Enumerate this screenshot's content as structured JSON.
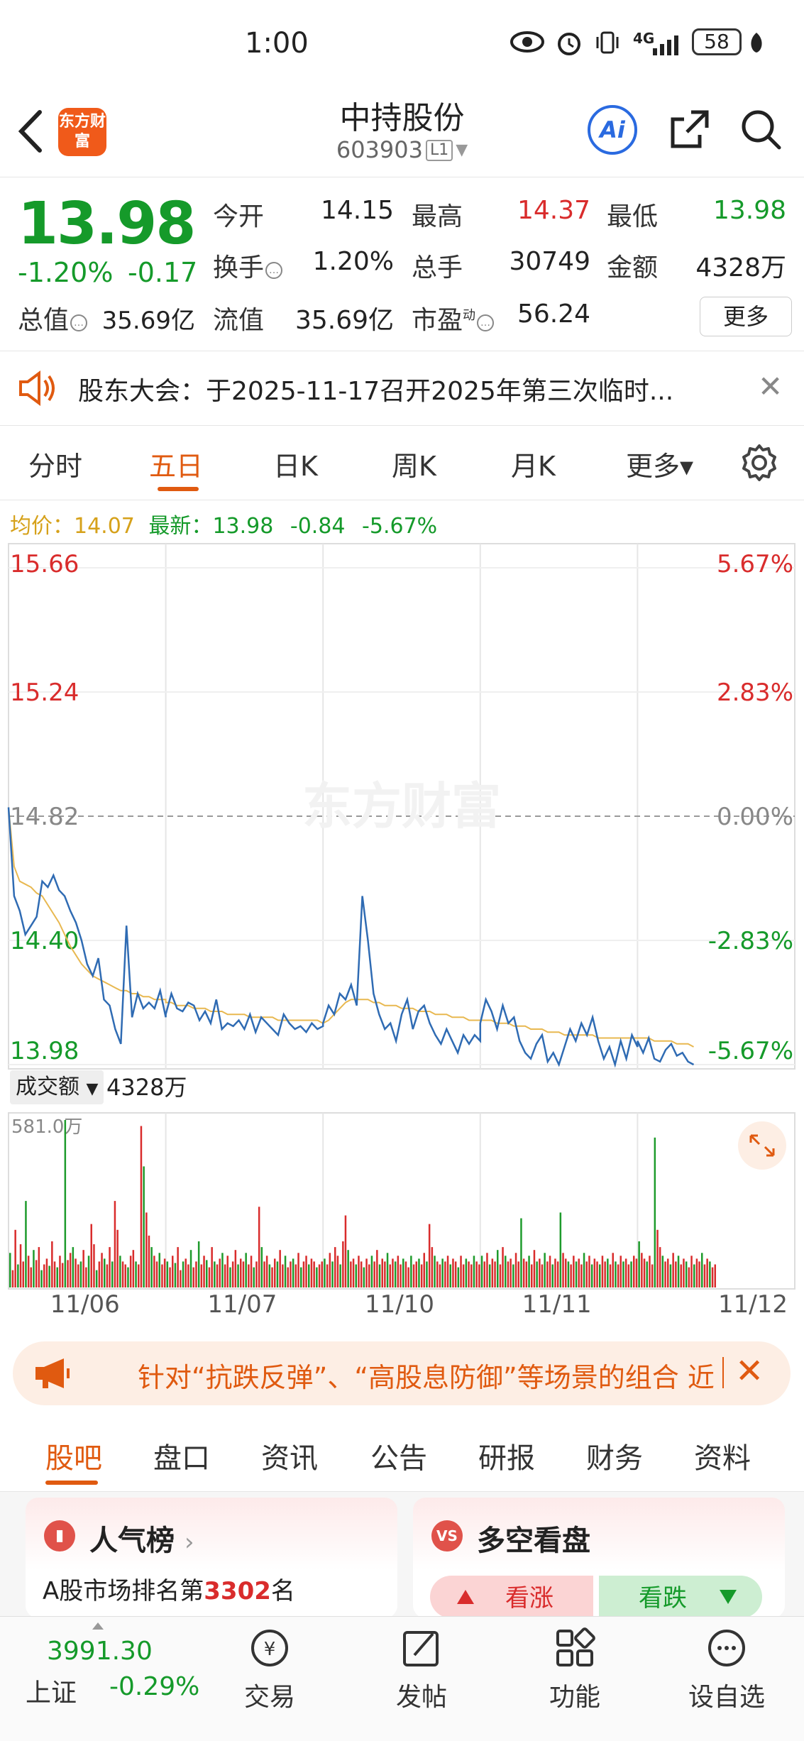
{
  "status": {
    "time": "1:00",
    "network": "4G",
    "battery": "58"
  },
  "header": {
    "logo_text": "东方财富",
    "stock_name": "中持股份",
    "stock_code": "603903",
    "level": "L1",
    "ai_label": "Ai"
  },
  "quote": {
    "price": "13.98",
    "change_pct": "-1.20%",
    "change": "-0.17",
    "open_label": "今开",
    "open": "14.15",
    "high_label": "最高",
    "high": "14.37",
    "low_label": "最低",
    "low": "13.98",
    "turnover_label": "换手",
    "turnover": "1.20%",
    "volume_label": "总手",
    "volume": "30749",
    "amount_label": "金额",
    "amount": "4328万",
    "mktcap_label": "总值",
    "mktcap": "35.69亿",
    "float_label": "流值",
    "float": "35.69亿",
    "pe_label": "市盈",
    "pe_sup": "动",
    "pe": "56.24",
    "more_label": "更多"
  },
  "notice": {
    "text": "股东大会：于2025-11-17召开2025年第三次临时..."
  },
  "chart_tabs": {
    "items": [
      "分时",
      "五日",
      "日K",
      "周K",
      "月K",
      "更多▾"
    ],
    "active": "五日"
  },
  "avg_bar": {
    "avg_label": "均价：",
    "avg": "14.07",
    "latest_label": "最新：",
    "latest": "13.98",
    "change": "-0.84",
    "pct": "-5.67%"
  },
  "chart_data": {
    "type": "line",
    "watermark": "东方财富",
    "y_ticks": [
      "15.66",
      "15.24",
      "14.82",
      "14.40",
      "13.98"
    ],
    "pct_ticks": [
      "5.67%",
      "2.83%",
      "0.00%",
      "-2.83%",
      "-5.67%"
    ],
    "ylim": [
      13.98,
      15.66
    ],
    "base": 14.82,
    "x_labels": [
      "11/06",
      "11/07",
      "11/10",
      "11/11",
      "11/12"
    ],
    "price_series": [
      [
        14.85,
        14.55,
        14.5,
        14.42,
        14.45,
        14.48,
        14.6,
        14.58,
        14.62,
        14.57,
        14.55,
        14.5,
        14.46,
        14.4,
        14.32,
        14.28,
        14.34,
        14.2,
        14.18,
        14.1,
        14.05,
        14.45,
        14.14,
        14.22,
        14.17,
        14.19,
        14.17,
        14.23,
        14.14
      ],
      [
        14.15,
        14.22,
        14.17,
        14.16,
        14.19,
        14.18,
        14.13,
        14.16,
        14.12,
        14.2,
        14.1,
        14.12,
        14.11,
        14.13,
        14.1,
        14.15,
        14.09,
        14.14,
        14.12,
        14.1,
        14.08,
        14.15,
        14.12,
        14.1,
        14.11,
        14.09,
        14.12,
        14.1,
        14.11
      ],
      [
        14.12,
        14.18,
        14.15,
        14.22,
        14.2,
        14.25,
        14.18,
        14.55,
        14.4,
        14.22,
        14.15,
        14.1,
        14.12,
        14.06,
        14.15,
        14.2,
        14.1,
        14.16,
        14.18,
        14.12,
        14.08,
        14.05,
        14.1,
        14.06,
        14.02,
        14.08,
        14.05,
        14.08,
        14.06
      ],
      [
        14.12,
        14.2,
        14.16,
        14.1,
        14.18,
        14.12,
        14.14,
        14.06,
        14.02,
        14.0,
        14.05,
        14.08,
        13.99,
        14.02,
        13.98,
        14.04,
        14.1,
        14.06,
        14.12,
        14.08,
        14.14,
        14.06,
        14.0,
        14.04,
        13.98,
        14.06,
        14.0,
        14.08,
        14.04
      ],
      [
        14.06,
        14.02,
        14.07,
        14.0,
        13.99,
        14.03,
        14.05,
        14.01,
        14.02,
        13.99,
        13.98
      ]
    ],
    "avg_series": [
      [
        14.85,
        14.65,
        14.6,
        14.59,
        14.58,
        14.56,
        14.55,
        14.52,
        14.49,
        14.46,
        14.42,
        14.38,
        14.35,
        14.32,
        14.3,
        14.28,
        14.27,
        14.26,
        14.25,
        14.24,
        14.23,
        14.23,
        14.22,
        14.22,
        14.21,
        14.21,
        14.2,
        14.2,
        14.2
      ],
      [
        14.19,
        14.19,
        14.18,
        14.18,
        14.18,
        14.17,
        14.17,
        14.17,
        14.16,
        14.16,
        14.16,
        14.15,
        14.15,
        14.15,
        14.15,
        14.14,
        14.14,
        14.14,
        14.14,
        14.14,
        14.13,
        14.13,
        14.13,
        14.13,
        14.13,
        14.13,
        14.13,
        14.13,
        14.12
      ],
      [
        14.12,
        14.13,
        14.15,
        14.17,
        14.19,
        14.2,
        14.2,
        14.2,
        14.2,
        14.19,
        14.19,
        14.18,
        14.18,
        14.18,
        14.17,
        14.17,
        14.17,
        14.16,
        14.16,
        14.16,
        14.15,
        14.15,
        14.15,
        14.14,
        14.14,
        14.14,
        14.13,
        14.13,
        14.13
      ],
      [
        14.13,
        14.13,
        14.13,
        14.12,
        14.12,
        14.12,
        14.11,
        14.11,
        14.11,
        14.1,
        14.1,
        14.1,
        14.09,
        14.09,
        14.09,
        14.08,
        14.08,
        14.08,
        14.08,
        14.08,
        14.08,
        14.07,
        14.07,
        14.07,
        14.07,
        14.07,
        14.07,
        14.07,
        14.07
      ],
      [
        14.07,
        14.07,
        14.07,
        14.06,
        14.06,
        14.06,
        14.06,
        14.05,
        14.05,
        14.05,
        14.04
      ]
    ]
  },
  "volume": {
    "label": "成交额",
    "value": "4328万",
    "max_label": "581.0万",
    "ymax": 581.0,
    "bars": [
      [
        120,
        60,
        200,
        80,
        150,
        90,
        300,
        110,
        70,
        130,
        95,
        140,
        60,
        80,
        100,
        75,
        160,
        90,
        70,
        110,
        85,
        581,
        95,
        120,
        140,
        100,
        80,
        90,
        130,
        70,
        110,
        220,
        150,
        60,
        90,
        120,
        100,
        80,
        140,
        90,
        300,
        200,
        110,
        90,
        80,
        70,
        110,
        130,
        90,
        80,
        560,
        420,
        260,
        180,
        140,
        110,
        90,
        120,
        80,
        100
      ],
      [
        90,
        70,
        110,
        85,
        140,
        60,
        90,
        100,
        80,
        130,
        70,
        90,
        160,
        80,
        110,
        95,
        70,
        140,
        90,
        80,
        100,
        120,
        80,
        110,
        70,
        90,
        130,
        80,
        100,
        90,
        120,
        80,
        110,
        70,
        90,
        280,
        140,
        90,
        110,
        80,
        70,
        100,
        90,
        130,
        80,
        110,
        70,
        90,
        100,
        80,
        120,
        70,
        90,
        110,
        80,
        100,
        90,
        70,
        80,
        90
      ],
      [
        100,
        80,
        120,
        90,
        140,
        110,
        80,
        160,
        250,
        130,
        90,
        100,
        80,
        110,
        90,
        70,
        100,
        80,
        110,
        90,
        130,
        80,
        100,
        90,
        120,
        80,
        100,
        90,
        110,
        80,
        100,
        90,
        70,
        110,
        80,
        90,
        100,
        80,
        120,
        90,
        220,
        140,
        110,
        90,
        80,
        100,
        90,
        110,
        80,
        100,
        90,
        70,
        110,
        80,
        100,
        90,
        80,
        110,
        90,
        80
      ],
      [
        110,
        90,
        120,
        80,
        100,
        90,
        130,
        80,
        140,
        110,
        90,
        100,
        80,
        120,
        90,
        240,
        100,
        90,
        110,
        80,
        130,
        90,
        100,
        80,
        120,
        90,
        110,
        80,
        100,
        90,
        260,
        120,
        100,
        90,
        80,
        110,
        90,
        100,
        80,
        120,
        90,
        110,
        80,
        100,
        90,
        80,
        110,
        90,
        100,
        80,
        120,
        90,
        80,
        110,
        90,
        100,
        80,
        90,
        110,
        100
      ],
      [
        160,
        120,
        100,
        90,
        110,
        80,
        520,
        200,
        140,
        110,
        90,
        100,
        80,
        120,
        90,
        110,
        80,
        100,
        90,
        70,
        110,
        80,
        100,
        90,
        120,
        80,
        100,
        90,
        70,
        80
      ]
    ]
  },
  "promo": {
    "text": "针对“抗跌反弹”、“高股息防御”等场景的组合 近"
  },
  "bottom_tabs": {
    "items": [
      "股吧",
      "盘口",
      "资讯",
      "公告",
      "研报",
      "财务",
      "资料"
    ],
    "active": "股吧"
  },
  "cards": {
    "popularity": {
      "title": "人气榜",
      "rank_prefix": "A股市场排名第",
      "rank": "3302",
      "rank_suffix": "名"
    },
    "longshort": {
      "title": "多空看盘",
      "up": "看涨",
      "down": "看跌"
    }
  },
  "index": {
    "value": "3991.30",
    "name": "上证",
    "pct": "-0.29%"
  },
  "nav": {
    "trade": "交易",
    "post": "发帖",
    "function": "功能",
    "watchlist": "设自选"
  }
}
